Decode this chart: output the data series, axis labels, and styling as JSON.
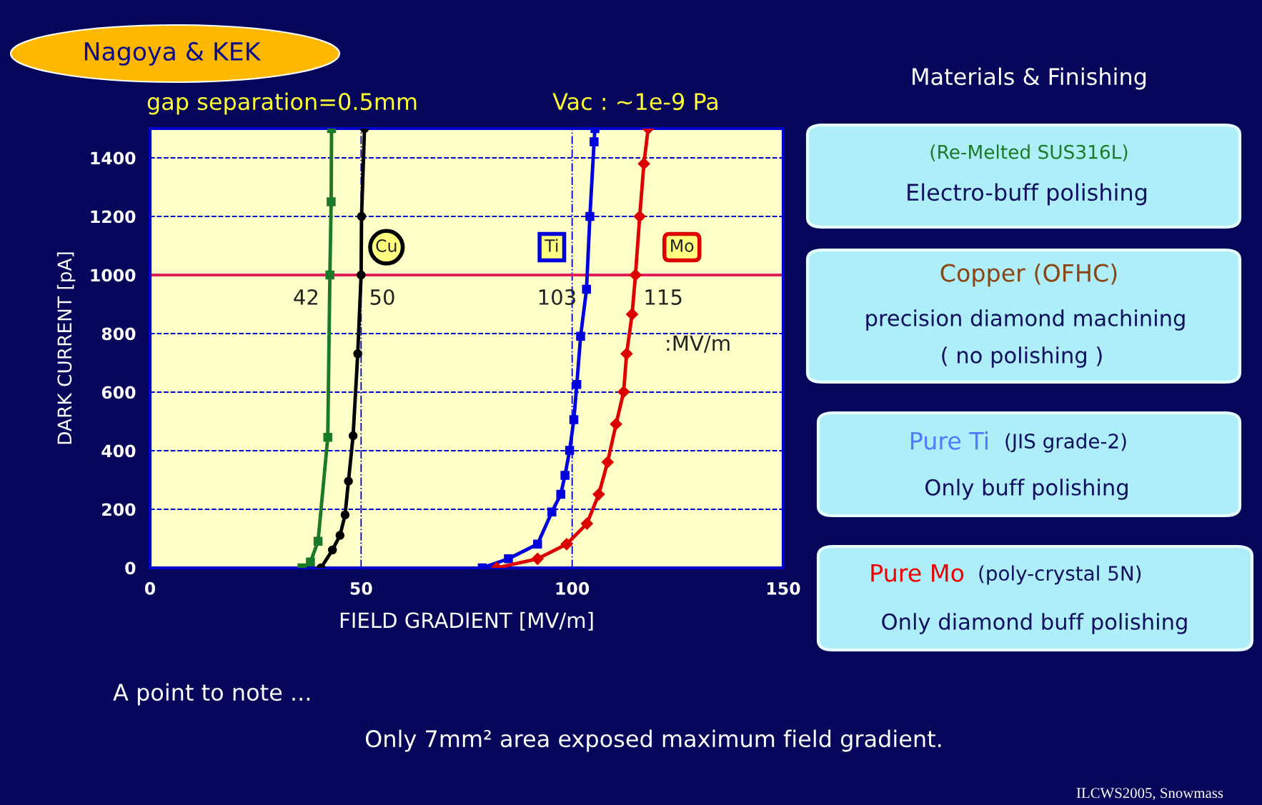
{
  "chart_data": {
    "type": "line",
    "xlabel": "FIELD GRADIENT [MV/m]",
    "ylabel": "DARK CURRENT [pA]",
    "xlim": [
      0,
      150
    ],
    "ylim": [
      0,
      1500
    ],
    "xticks": [
      0,
      50,
      100,
      150
    ],
    "yticks": [
      0,
      200,
      400,
      600,
      800,
      1000,
      1200,
      1400
    ],
    "grid": true,
    "line_style": "solid",
    "series": [
      {
        "color": "#1a7a2a",
        "marker": "square",
        "x": [
          36,
          38,
          39.8,
          42.1,
          42.6,
          42.9,
          43
        ],
        "values": [
          0,
          20,
          91,
          446,
          1000,
          1250,
          1500
        ]
      },
      {
        "name": "Cu",
        "color": "#000000",
        "marker": "circle",
        "x": [
          40.5,
          43.2,
          45,
          46.2,
          47.0,
          48.1,
          49.2,
          50.0,
          50.1,
          50.8
        ],
        "values": [
          0,
          61,
          111,
          181,
          296,
          451,
          731,
          1000,
          1200,
          1500
        ]
      },
      {
        "name": "Ti",
        "color": "#0000dd",
        "marker": "square",
        "x": [
          78.7,
          84.9,
          91.8,
          95.2,
          97.3,
          98.3,
          99.4,
          100.4,
          101.1,
          102,
          103.4,
          104.2,
          105.2,
          105.4
        ],
        "values": [
          0,
          31,
          81,
          191,
          251,
          316,
          401,
          506,
          626,
          791,
          951,
          1200,
          1455,
          1500
        ]
      },
      {
        "name": "Mo",
        "color": "#dd0000",
        "marker": "diamond",
        "x": [
          82.1,
          91.8,
          98.7,
          103.5,
          106.3,
          108.4,
          110.4,
          112.2,
          112.9,
          114.2,
          115.0,
          116.0,
          117.0,
          118.0
        ],
        "values": [
          0,
          31,
          81,
          151,
          251,
          361,
          491,
          601,
          731,
          866,
          1000,
          1200,
          1380,
          1500
        ]
      }
    ],
    "ref_lines": [
      {
        "axis": "y",
        "value": 1000,
        "color": "#e0205a"
      }
    ],
    "annotations": [
      {
        "text": "42",
        "x": 42,
        "y": 1000
      },
      {
        "text": "50",
        "x": 50,
        "y": 1000
      },
      {
        "text": "103",
        "x": 103,
        "y": 1000
      },
      {
        "text": "115",
        "x": 115,
        "y": 1000
      },
      ":MV/m",
      "Nagoya & KEK",
      "gap separation=0.5mm",
      "Vac : ~1e-9 Pa",
      "Materials & Finishing",
      "(Re-Melted SUS316L)",
      "Electro-buff polishing",
      "Copper (OFHC)",
      "precision diamond machining",
      "( no polishing )",
      "Pure Ti",
      "(JIS grade-2)",
      "Only buff polishing",
      "Pure Mo",
      "(poly-crystal 5N)",
      "Only diamond buff polishing",
      "A point to note ...",
      "Only 7mm² area exposed maximum field gradient.",
      "ILCWS2005, Snowmass"
    ]
  }
}
